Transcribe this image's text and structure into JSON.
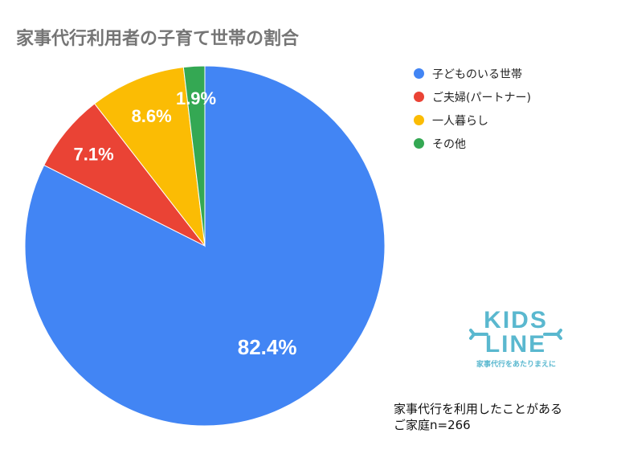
{
  "chart_data": {
    "type": "pie",
    "title": "家事代行利用者の子育て世帯の割合",
    "categories": [
      "子どものいる世帯",
      "ご夫婦(パートナー)",
      "一人暮らし",
      "その他"
    ],
    "values": [
      82.4,
      7.1,
      8.6,
      1.9
    ],
    "value_labels": [
      "82.4%",
      "7.1%",
      "8.6%",
      "1.9%"
    ],
    "slice_order": [
      0,
      1,
      2,
      3
    ],
    "start_angle": "12 o'clock",
    "direction": "clockwise",
    "colors": [
      "#4285f4",
      "#ea4335",
      "#fbbc04",
      "#34a853"
    ],
    "legend_position": "right"
  },
  "logo": {
    "name": "KIDS LINE",
    "line1": "KIDS",
    "line2": "LINE",
    "tagline": "家事代行をあたりまえに",
    "color": "#5ab8cf"
  },
  "note": {
    "line1": "家事代行を利用したことがある",
    "line2": "ご家庭n=266"
  }
}
